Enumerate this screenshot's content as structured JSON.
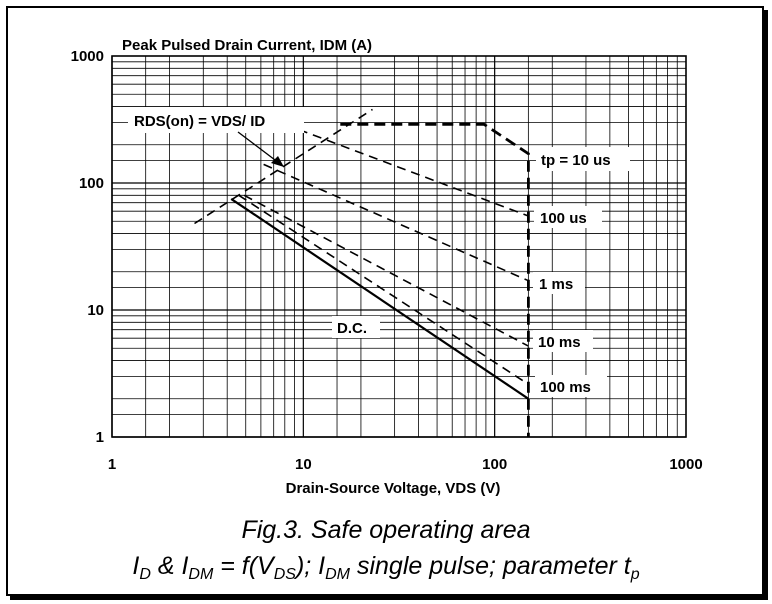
{
  "chart_data": {
    "type": "line",
    "title": "Peak Pulsed Drain Current, IDM (A)",
    "xlabel": "Drain-Source Voltage, VDS (V)",
    "ylabel": "",
    "x_scale": "log",
    "y_scale": "log",
    "xlim": [
      1,
      1000
    ],
    "ylim": [
      1,
      1000
    ],
    "grid": true,
    "x_ticks": [
      "1",
      "10",
      "100",
      "1000"
    ],
    "y_ticks": [
      "1",
      "10",
      "100",
      "1000"
    ],
    "series": [
      {
        "name": "tp = 10 us",
        "style": "dashed",
        "x": [
          15.6,
          88,
          150,
          150
        ],
        "y": [
          290,
          290,
          170,
          1
        ]
      },
      {
        "name": "100 us",
        "style": "dashed",
        "x": [
          8,
          150
        ],
        "y": [
          290,
          55
        ]
      },
      {
        "name": "1 ms",
        "style": "dashed",
        "x": [
          6.2,
          150
        ],
        "y": [
          140,
          17
        ]
      },
      {
        "name": "10 ms",
        "style": "dashed",
        "x": [
          4.9,
          150
        ],
        "y": [
          80,
          5.2
        ]
      },
      {
        "name": "100 ms",
        "style": "dashed",
        "x": [
          4.6,
          150
        ],
        "y": [
          80,
          2.6
        ]
      },
      {
        "name": "D.C.",
        "style": "solid",
        "x": [
          4.2,
          150
        ],
        "y": [
          75,
          2
        ]
      },
      {
        "name": "RDS(on) = VDS/ ID",
        "style": "dashed",
        "x": [
          2.7,
          23
        ],
        "y": [
          48,
          380
        ]
      }
    ],
    "annotations": {
      "rdson": "RDS(on) = VDS/ ID",
      "tp10": "tp = 10 us",
      "us100": "100 us",
      "ms1": "1 ms",
      "ms10": "10 ms",
      "ms100": "100 ms",
      "dc": "D.C."
    }
  },
  "caption": {
    "line1": "Fig.3.   Safe operating area",
    "line2": {
      "i": "I",
      "d": "D",
      "amp": " & I",
      "dm1": "DM",
      "eq": " = f(V",
      "ds": "DS",
      "semi": "); I",
      "dm2": "DM",
      "rest": " single pulse; parameter t",
      "p": "p"
    }
  }
}
